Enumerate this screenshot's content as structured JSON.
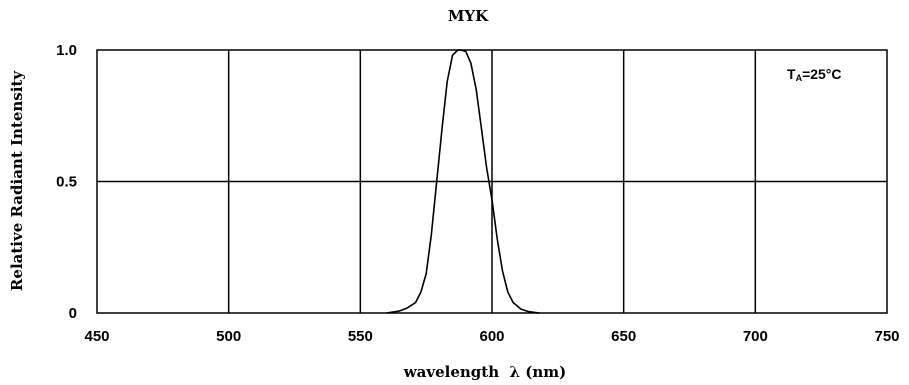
{
  "chart_data": {
    "type": "line",
    "title": "MYK",
    "xlabel": "wavelength  λ (nm)",
    "ylabel": "Relative Radiant Intensity",
    "xlim": [
      450,
      750
    ],
    "ylim": [
      0,
      1.0
    ],
    "x_ticks": [
      450,
      500,
      550,
      600,
      650,
      700,
      750
    ],
    "x_tick_labels": [
      "450",
      "500",
      "550",
      "600",
      "650",
      "700",
      "750"
    ],
    "y_ticks": [
      0,
      0.5,
      1.0
    ],
    "y_tick_labels": [
      "0",
      "0.5",
      "1.0"
    ],
    "grid": true,
    "annotation": {
      "main": "T",
      "sub": "A",
      "rest": "=25°C",
      "placement": "top-right"
    },
    "series": [
      {
        "x": [
          560,
          565,
          568,
          571,
          573,
          575,
          577,
          579,
          581,
          583,
          585,
          587,
          588,
          590,
          592,
          594,
          596,
          598,
          600,
          602,
          604,
          606,
          608,
          611,
          614,
          618
        ],
        "y": [
          0.0,
          0.008,
          0.02,
          0.04,
          0.08,
          0.15,
          0.3,
          0.5,
          0.7,
          0.88,
          0.98,
          1.0,
          1.0,
          0.995,
          0.95,
          0.85,
          0.7,
          0.55,
          0.43,
          0.28,
          0.16,
          0.08,
          0.04,
          0.015,
          0.005,
          0.0
        ]
      }
    ]
  }
}
